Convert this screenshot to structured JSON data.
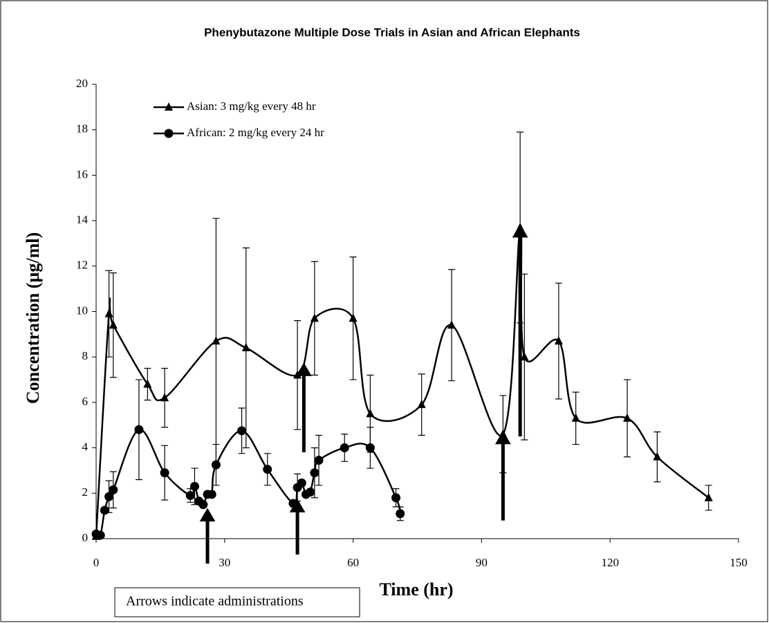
{
  "chart_data": {
    "type": "line",
    "title": "Phenybutazone Multiple Dose Trials in Asian and African Elephants",
    "xlabel": "Time (hr)",
    "ylabel": "Concentration (µg/ml)",
    "xlim": [
      0,
      150
    ],
    "xticks": [
      0,
      30,
      60,
      90,
      120,
      150
    ],
    "ylim": [
      0,
      20
    ],
    "yticks": [
      0,
      2,
      4,
      6,
      8,
      10,
      12,
      14,
      16,
      18,
      20
    ],
    "color": "#000000",
    "series": [
      {
        "name": "Asian: 3 mg/kg every 48 hr",
        "marker": "triangle",
        "x": [
          0,
          3,
          4,
          12,
          16,
          28,
          35,
          47,
          51,
          60,
          64,
          76,
          83,
          95,
          99,
          100,
          108,
          112,
          124,
          131,
          143
        ],
        "values": [
          0.1,
          9.9,
          9.4,
          6.8,
          6.2,
          8.7,
          8.4,
          7.2,
          9.7,
          9.7,
          5.5,
          5.9,
          9.4,
          4.6,
          13.7,
          8.0,
          8.7,
          5.3,
          5.3,
          3.6,
          1.8
        ],
        "errors": [
          null,
          1.9,
          2.3,
          0.7,
          1.3,
          5.4,
          4.4,
          2.4,
          2.5,
          2.7,
          1.7,
          1.35,
          2.45,
          1.7,
          4.2,
          3.65,
          2.55,
          1.15,
          1.7,
          1.1,
          0.55
        ]
      },
      {
        "name": "African: 2 mg/kg every 24 hr",
        "marker": "circle",
        "x": [
          0,
          1,
          2,
          3,
          4,
          10,
          16,
          22,
          23,
          24,
          25,
          26,
          27,
          28,
          34,
          40,
          46,
          47,
          48,
          49,
          50,
          51,
          52,
          58,
          64,
          70,
          71
        ],
        "values": [
          0.2,
          0.15,
          1.25,
          1.85,
          2.15,
          4.8,
          2.9,
          1.9,
          2.3,
          1.65,
          1.5,
          1.95,
          1.95,
          3.25,
          4.75,
          3.05,
          1.55,
          2.25,
          2.45,
          1.95,
          2.05,
          2.9,
          3.45,
          4.0,
          4.0,
          1.8,
          1.1
        ],
        "errors": [
          null,
          null,
          null,
          0.7,
          0.8,
          2.2,
          1.2,
          0.3,
          0.8,
          null,
          null,
          null,
          null,
          0.9,
          1.0,
          0.7,
          null,
          0.6,
          null,
          null,
          null,
          1.1,
          1.1,
          0.6,
          0.9,
          0.4,
          0.3
        ]
      }
    ],
    "administrations": [
      {
        "x": 26,
        "from": -1.1,
        "to": 1.2
      },
      {
        "x": 47,
        "from": -0.7,
        "to": 1.6
      },
      {
        "x": 48.5,
        "from": 3.8,
        "to": 7.6
      },
      {
        "x": 95,
        "from": 0.8,
        "to": 4.6
      },
      {
        "x": 99,
        "from": 4.5,
        "to": 13.7
      }
    ],
    "annotation": "Arrows indicate administrations"
  }
}
